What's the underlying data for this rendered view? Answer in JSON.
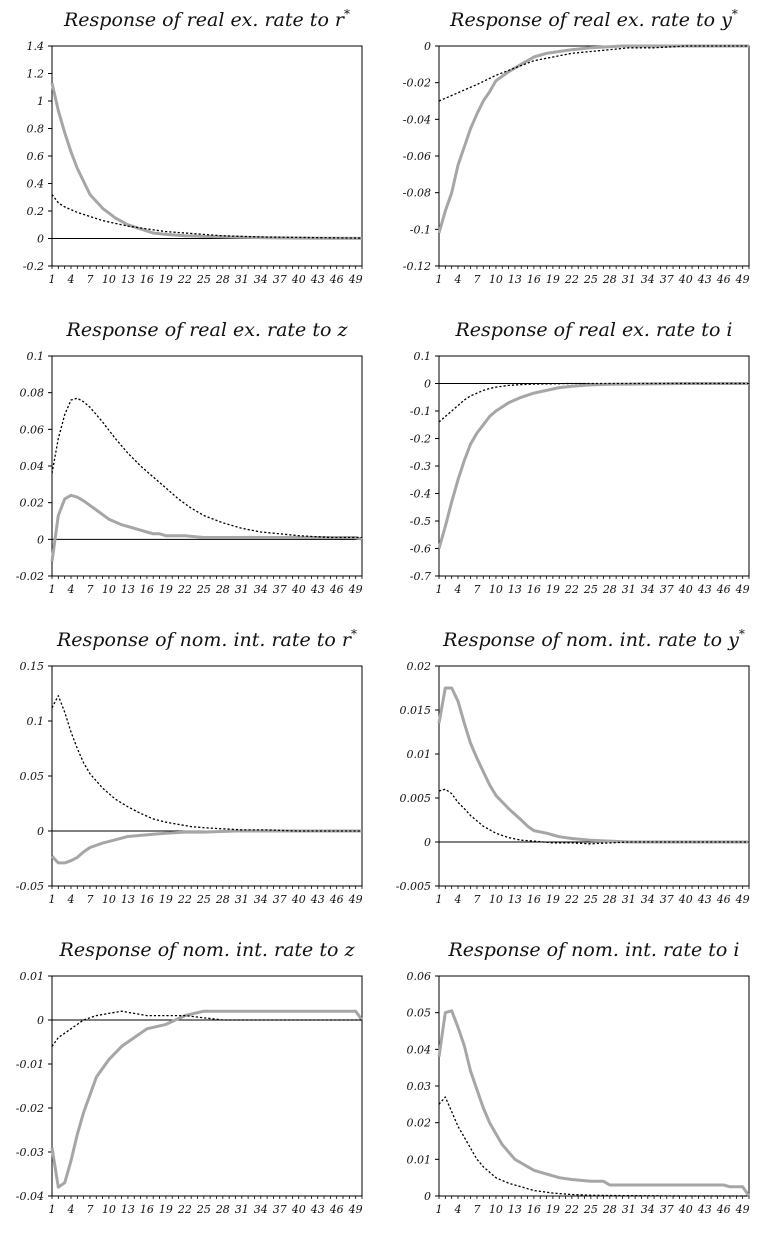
{
  "chart_data": [
    {
      "type": "line",
      "title_main": "Response of real ex. rate to ",
      "title_var": "r",
      "title_sup": "*",
      "ylim": [
        -0.2,
        1.4
      ],
      "yticks": [
        "1.4",
        "1.2",
        "1",
        "0.8",
        "0.6",
        "0.4",
        "0.2",
        "0",
        "-0.2"
      ],
      "yvals": [
        1.4,
        1.2,
        1,
        0.8,
        0.6,
        0.4,
        0.2,
        0,
        -0.2
      ],
      "xticks": [
        "1",
        "4",
        "7",
        "10",
        "13",
        "16",
        "19",
        "22",
        "25",
        "28",
        "31",
        "34",
        "37",
        "40",
        "43",
        "46",
        "49"
      ],
      "xlim": [
        1,
        50
      ],
      "series": [
        {
          "style": "solid",
          "color": "#a6a6a6",
          "x": [
            1,
            2,
            3,
            4,
            5,
            7,
            9,
            11,
            13,
            15,
            17,
            19,
            22,
            25,
            30,
            35,
            40,
            45,
            50
          ],
          "y": [
            1.13,
            0.93,
            0.77,
            0.63,
            0.51,
            0.32,
            0.22,
            0.15,
            0.1,
            0.07,
            0.04,
            0.03,
            0.02,
            0.015,
            0.01,
            0.005,
            0.003,
            0.002,
            0.001
          ]
        },
        {
          "style": "dotted",
          "color": "#000000",
          "x": [
            1,
            2,
            3,
            5,
            7,
            9,
            11,
            13,
            16,
            19,
            22,
            25,
            28,
            31,
            35,
            40,
            45,
            50
          ],
          "y": [
            0.32,
            0.26,
            0.23,
            0.19,
            0.16,
            0.13,
            0.11,
            0.09,
            0.07,
            0.05,
            0.04,
            0.03,
            0.02,
            0.015,
            0.01,
            0.008,
            0.005,
            0.003
          ]
        }
      ]
    },
    {
      "type": "line",
      "title_main": "Response of real ex. rate to ",
      "title_var": "y",
      "title_sup": "*",
      "ylim": [
        -0.12,
        0
      ],
      "yticks": [
        "0",
        "-0.02",
        "-0.04",
        "-0.06",
        "-0.08",
        "-0.1",
        "-0.12"
      ],
      "yvals": [
        0,
        -0.02,
        -0.04,
        -0.06,
        -0.08,
        -0.1,
        -0.12
      ],
      "xticks": [
        "1",
        "4",
        "7",
        "10",
        "13",
        "16",
        "19",
        "22",
        "25",
        "28",
        "31",
        "34",
        "37",
        "40",
        "43",
        "46",
        "49"
      ],
      "xlim": [
        1,
        50
      ],
      "series": [
        {
          "style": "solid",
          "color": "#a6a6a6",
          "x": [
            1,
            2,
            3,
            4,
            5,
            6,
            7,
            8,
            9,
            10,
            12,
            14,
            16,
            18,
            20,
            22,
            25,
            30,
            40,
            50
          ],
          "y": [
            -0.102,
            -0.09,
            -0.08,
            -0.065,
            -0.055,
            -0.045,
            -0.037,
            -0.03,
            -0.025,
            -0.019,
            -0.014,
            -0.01,
            -0.006,
            -0.004,
            -0.003,
            -0.002,
            -0.001,
            0,
            0,
            0
          ]
        },
        {
          "style": "dotted",
          "color": "#000000",
          "x": [
            1,
            3,
            5,
            7,
            10,
            13,
            16,
            19,
            22,
            25,
            28,
            31,
            35,
            40,
            50
          ],
          "y": [
            -0.03,
            -0.027,
            -0.024,
            -0.021,
            -0.016,
            -0.012,
            -0.008,
            -0.006,
            -0.004,
            -0.003,
            -0.002,
            -0.001,
            -0.001,
            0,
            0
          ]
        }
      ]
    },
    {
      "type": "line",
      "title_main": "Response of real ex. rate to ",
      "title_var": "z",
      "title_sup": "",
      "ylim": [
        -0.02,
        0.1
      ],
      "yticks": [
        "0.1",
        "0.08",
        "0.06",
        "0.04",
        "0.02",
        "0",
        "-0.02"
      ],
      "yvals": [
        0.1,
        0.08,
        0.06,
        0.04,
        0.02,
        0,
        -0.02
      ],
      "xticks": [
        "1",
        "4",
        "7",
        "10",
        "13",
        "16",
        "19",
        "22",
        "25",
        "28",
        "31",
        "34",
        "37",
        "40",
        "43",
        "46",
        "49"
      ],
      "xlim": [
        1,
        50
      ],
      "series": [
        {
          "style": "solid",
          "color": "#a6a6a6",
          "x": [
            1,
            2,
            3,
            4,
            5,
            6,
            8,
            10,
            12,
            14,
            15,
            16,
            17,
            18,
            19,
            22,
            25,
            30,
            40,
            48,
            49,
            50
          ],
          "y": [
            -0.012,
            0.013,
            0.022,
            0.024,
            0.023,
            0.021,
            0.016,
            0.011,
            0.008,
            0.006,
            0.005,
            0.004,
            0.003,
            0.003,
            0.002,
            0.002,
            0.001,
            0.001,
            0.001,
            0.001,
            0.001,
            0
          ]
        },
        {
          "style": "dotted",
          "color": "#000000",
          "x": [
            1,
            2,
            3,
            4,
            5,
            6,
            7,
            9,
            11,
            13,
            15,
            17,
            19,
            21,
            23,
            25,
            28,
            31,
            34,
            37,
            40,
            45,
            50
          ],
          "y": [
            0.036,
            0.055,
            0.068,
            0.076,
            0.077,
            0.075,
            0.072,
            0.064,
            0.055,
            0.047,
            0.04,
            0.034,
            0.028,
            0.022,
            0.017,
            0.013,
            0.009,
            0.006,
            0.004,
            0.003,
            0.002,
            0.001,
            0.001
          ]
        }
      ]
    },
    {
      "type": "line",
      "title_main": "Response of real ex. rate to ",
      "title_var": "i",
      "title_sup": "",
      "ylim": [
        -0.7,
        0.1
      ],
      "yticks": [
        "0.1",
        "0",
        "-0.1",
        "-0.2",
        "-0.3",
        "-0.4",
        "-0.5",
        "-0.6",
        "-0.7"
      ],
      "yvals": [
        0.1,
        0,
        -0.1,
        -0.2,
        -0.3,
        -0.4,
        -0.5,
        -0.6,
        -0.7
      ],
      "xticks": [
        "1",
        "4",
        "7",
        "10",
        "13",
        "16",
        "19",
        "22",
        "25",
        "28",
        "31",
        "34",
        "37",
        "40",
        "43",
        "46",
        "49"
      ],
      "xlim": [
        1,
        50
      ],
      "series": [
        {
          "style": "solid",
          "color": "#a6a6a6",
          "x": [
            1,
            2,
            3,
            4,
            5,
            6,
            7,
            8,
            9,
            10,
            12,
            14,
            16,
            18,
            20,
            22,
            25,
            28,
            31,
            40,
            50
          ],
          "y": [
            -0.6,
            -0.52,
            -0.43,
            -0.35,
            -0.28,
            -0.22,
            -0.18,
            -0.15,
            -0.12,
            -0.1,
            -0.07,
            -0.05,
            -0.035,
            -0.025,
            -0.015,
            -0.01,
            -0.005,
            -0.003,
            -0.002,
            0,
            0
          ]
        },
        {
          "style": "dotted",
          "color": "#000000",
          "x": [
            1,
            2,
            3,
            4,
            5,
            6,
            7,
            8,
            9,
            10,
            12,
            14,
            16,
            19,
            22,
            25,
            30,
            40,
            50
          ],
          "y": [
            -0.14,
            -0.12,
            -0.1,
            -0.08,
            -0.06,
            -0.045,
            -0.035,
            -0.025,
            -0.018,
            -0.013,
            -0.007,
            -0.004,
            -0.002,
            -0.001,
            0,
            0,
            0,
            0,
            0
          ]
        }
      ]
    },
    {
      "type": "line",
      "title_main": "Response of nom. int. rate to ",
      "title_var": "r",
      "title_sup": "*",
      "ylim": [
        -0.05,
        0.15
      ],
      "yticks": [
        "0.15",
        "0.1",
        "0.05",
        "0",
        "-0.05"
      ],
      "yvals": [
        0.15,
        0.1,
        0.05,
        0,
        -0.05
      ],
      "xticks": [
        "1",
        "4",
        "7",
        "10",
        "13",
        "16",
        "19",
        "22",
        "25",
        "28",
        "31",
        "34",
        "37",
        "40",
        "43",
        "46",
        "49"
      ],
      "xlim": [
        1,
        50
      ],
      "series": [
        {
          "style": "solid",
          "color": "#a6a6a6",
          "x": [
            1,
            2,
            3,
            4,
            5,
            6,
            7,
            9,
            11,
            13,
            15,
            17,
            19,
            22,
            25,
            30,
            40,
            49,
            50
          ],
          "y": [
            -0.023,
            -0.029,
            -0.029,
            -0.027,
            -0.024,
            -0.019,
            -0.015,
            -0.011,
            -0.008,
            -0.005,
            -0.004,
            -0.003,
            -0.002,
            -0.001,
            -0.001,
            0,
            0,
            0,
            0
          ]
        },
        {
          "style": "dotted",
          "color": "#000000",
          "x": [
            1,
            2,
            3,
            4,
            5,
            6,
            7,
            9,
            11,
            13,
            15,
            17,
            19,
            21,
            23,
            25,
            28,
            31,
            35,
            40,
            45,
            50
          ],
          "y": [
            0.112,
            0.123,
            0.108,
            0.09,
            0.075,
            0.062,
            0.052,
            0.039,
            0.029,
            0.022,
            0.016,
            0.011,
            0.008,
            0.006,
            0.004,
            0.003,
            0.002,
            0.001,
            0.001,
            0,
            0,
            0
          ]
        }
      ]
    },
    {
      "type": "line",
      "title_main": "Response of nom. int. rate to ",
      "title_var": "y",
      "title_sup": "*",
      "ylim": [
        -0.005,
        0.02
      ],
      "yticks": [
        "0.02",
        "0.015",
        "0.01",
        "0.005",
        "0",
        "-0.005"
      ],
      "yvals": [
        0.02,
        0.015,
        0.01,
        0.005,
        0,
        -0.005
      ],
      "xticks": [
        "1",
        "4",
        "7",
        "10",
        "13",
        "16",
        "19",
        "22",
        "25",
        "28",
        "31",
        "34",
        "37",
        "40",
        "43",
        "46",
        "49"
      ],
      "xlim": [
        1,
        50
      ],
      "series": [
        {
          "style": "solid",
          "color": "#a6a6a6",
          "x": [
            1,
            2,
            3,
            4,
            5,
            6,
            7,
            8,
            9,
            10,
            12,
            14,
            15,
            16,
            18,
            19,
            20,
            22,
            25,
            28,
            31,
            40,
            50
          ],
          "y": [
            0.0135,
            0.0175,
            0.0175,
            0.016,
            0.0135,
            0.0112,
            0.0095,
            0.008,
            0.0065,
            0.0053,
            0.0038,
            0.0025,
            0.0018,
            0.0013,
            0.001,
            0.0008,
            0.0006,
            0.0004,
            0.0002,
            0.0001,
            0,
            0,
            0
          ]
        },
        {
          "style": "dotted",
          "color": "#000000",
          "x": [
            1,
            2,
            3,
            4,
            5,
            6,
            8,
            10,
            12,
            14,
            16,
            19,
            22,
            25,
            28,
            31,
            35,
            40,
            50
          ],
          "y": [
            0.0058,
            0.006,
            0.0055,
            0.0045,
            0.0038,
            0.003,
            0.0018,
            0.001,
            0.0005,
            0.0002,
            0.0001,
            -0.0001,
            -0.0001,
            -0.0002,
            -0.0001,
            0,
            0,
            0,
            0
          ]
        }
      ]
    },
    {
      "type": "line",
      "title_main": "Response of nom. int. rate to ",
      "title_var": "z",
      "title_sup": "",
      "ylim": [
        -0.04,
        0.01
      ],
      "yticks": [
        "0.01",
        "0",
        "-0.01",
        "-0.02",
        "-0.03",
        "-0.04"
      ],
      "yvals": [
        0.01,
        0,
        -0.01,
        -0.02,
        -0.03,
        -0.04
      ],
      "xticks": [
        "1",
        "4",
        "7",
        "10",
        "13",
        "16",
        "19",
        "22",
        "25",
        "28",
        "31",
        "34",
        "37",
        "40",
        "43",
        "46",
        "49"
      ],
      "xlim": [
        1,
        50
      ],
      "series": [
        {
          "style": "solid",
          "color": "#a6a6a6",
          "x": [
            1,
            2,
            3,
            4,
            5,
            6,
            7,
            8,
            9,
            10,
            12,
            14,
            16,
            19,
            22,
            25,
            30,
            40,
            48,
            49,
            50
          ],
          "y": [
            -0.029,
            -0.038,
            -0.037,
            -0.032,
            -0.026,
            -0.021,
            -0.017,
            -0.013,
            -0.011,
            -0.009,
            -0.006,
            -0.004,
            -0.002,
            -0.001,
            0.001,
            0.002,
            0.002,
            0.002,
            0.002,
            0.002,
            0
          ]
        },
        {
          "style": "dotted",
          "color": "#000000",
          "x": [
            1,
            2,
            3,
            4,
            5,
            6,
            7,
            8,
            10,
            12,
            14,
            16,
            19,
            22,
            25,
            28,
            31,
            40,
            50
          ],
          "y": [
            -0.006,
            -0.004,
            -0.003,
            -0.002,
            -0.001,
            0,
            0.0005,
            0.001,
            0.0015,
            0.002,
            0.0015,
            0.001,
            0.001,
            0.001,
            0.0005,
            0,
            0,
            0,
            0
          ]
        }
      ]
    },
    {
      "type": "line",
      "title_main": "Response of nom. int. rate to ",
      "title_var": "i",
      "title_sup": "",
      "ylim": [
        0,
        0.06
      ],
      "yticks": [
        "0.06",
        "0.05",
        "0.04",
        "0.03",
        "0.02",
        "0.01",
        "0"
      ],
      "yvals": [
        0.06,
        0.05,
        0.04,
        0.03,
        0.02,
        0.01,
        0
      ],
      "xticks": [
        "1",
        "4",
        "7",
        "10",
        "13",
        "16",
        "19",
        "22",
        "25",
        "28",
        "31",
        "34",
        "37",
        "40",
        "43",
        "46",
        "49"
      ],
      "xlim": [
        1,
        50
      ],
      "series": [
        {
          "style": "solid",
          "color": "#a6a6a6",
          "x": [
            1,
            2,
            3,
            4,
            5,
            6,
            7,
            8,
            9,
            10,
            11,
            12,
            13,
            14,
            15,
            16,
            17,
            18,
            19,
            20,
            22,
            25,
            27,
            28,
            30,
            40,
            46,
            47,
            49,
            50
          ],
          "y": [
            0.038,
            0.05,
            0.0505,
            0.046,
            0.041,
            0.034,
            0.029,
            0.024,
            0.02,
            0.017,
            0.014,
            0.012,
            0.01,
            0.009,
            0.008,
            0.007,
            0.0065,
            0.006,
            0.0055,
            0.005,
            0.0045,
            0.004,
            0.004,
            0.003,
            0.003,
            0.003,
            0.003,
            0.0025,
            0.0025,
            0
          ]
        },
        {
          "style": "dotted",
          "color": "#000000",
          "x": [
            1,
            2,
            3,
            4,
            5,
            6,
            7,
            8,
            10,
            12,
            14,
            16,
            19,
            22,
            25,
            30,
            40,
            50
          ],
          "y": [
            0.025,
            0.027,
            0.023,
            0.019,
            0.016,
            0.013,
            0.01,
            0.008,
            0.005,
            0.0035,
            0.0025,
            0.0015,
            0.0008,
            0.0004,
            0.0002,
            0.0001,
            0,
            0
          ]
        }
      ]
    }
  ]
}
